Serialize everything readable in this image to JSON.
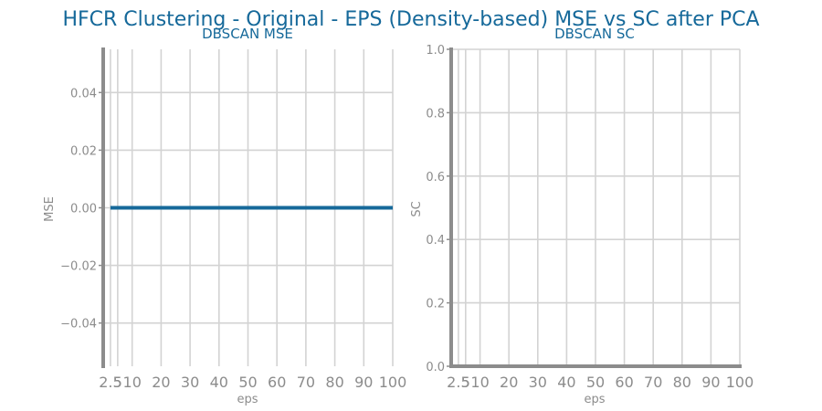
{
  "figure": {
    "title": "HFCR Clustering - Original - EPS (Density-based) MSE vs SC after PCA"
  },
  "colors": {
    "title": "#16699a",
    "series": "#16699a",
    "grid": "#d3d3d3",
    "axis": "#8c8c8c",
    "text": "#8c8c8c"
  },
  "chart_data": [
    {
      "type": "line",
      "title": "DBSCAN MSE",
      "xlabel": "eps",
      "ylabel": "MSE",
      "x": [
        2.5,
        5,
        10,
        20,
        30,
        40,
        50,
        60,
        70,
        80,
        90,
        100
      ],
      "series": [
        {
          "values": [
            0,
            0,
            0,
            0,
            0,
            0,
            0,
            0,
            0,
            0,
            0,
            0
          ]
        }
      ],
      "xticks": [
        2.5,
        5,
        10,
        20,
        30,
        40,
        50,
        60,
        70,
        80,
        90,
        100
      ],
      "xtick_labels": [
        "2.5",
        "5",
        "10",
        "20",
        "30",
        "40",
        "50",
        "60",
        "70",
        "80",
        "90",
        "100"
      ],
      "yticks": [
        -0.04,
        -0.02,
        0.0,
        0.02,
        0.04
      ],
      "ytick_labels": [
        "−0.04",
        "−0.02",
        "0.00",
        "0.02",
        "0.04"
      ],
      "xlim": [
        0,
        100
      ],
      "ylim": [
        -0.055,
        0.055
      ],
      "grid": true,
      "legend": "none"
    },
    {
      "type": "line",
      "title": "DBSCAN SC",
      "xlabel": "eps",
      "ylabel": "SC",
      "x": [],
      "series": [],
      "xticks": [
        2.5,
        5,
        10,
        20,
        30,
        40,
        50,
        60,
        70,
        80,
        90,
        100
      ],
      "xtick_labels": [
        "2.5",
        "5",
        "10",
        "20",
        "30",
        "40",
        "50",
        "60",
        "70",
        "80",
        "90",
        "100"
      ],
      "yticks": [
        0.0,
        0.2,
        0.4,
        0.6,
        0.8,
        1.0
      ],
      "ytick_labels": [
        "0.0",
        "0.2",
        "0.4",
        "0.6",
        "0.8",
        "1.0"
      ],
      "xlim": [
        0,
        100
      ],
      "ylim": [
        0.0,
        1.0
      ],
      "grid": true,
      "legend": "none"
    }
  ]
}
